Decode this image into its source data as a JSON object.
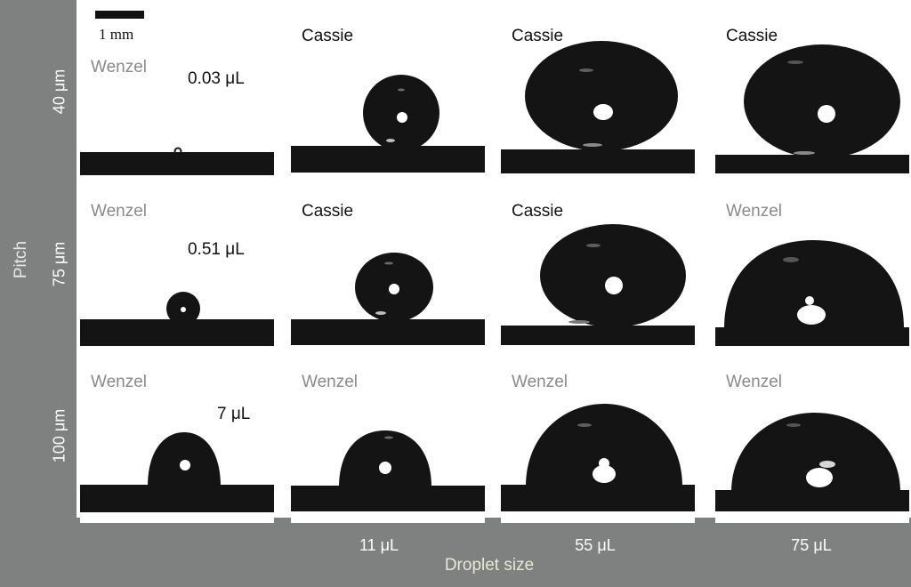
{
  "scale_bar": {
    "label": "1 mm"
  },
  "axes": {
    "y_title": "Pitch",
    "x_title": "Droplet size"
  },
  "rows": [
    {
      "label": "40 μm"
    },
    {
      "label": "75 μm"
    },
    {
      "label": "100 μm"
    }
  ],
  "columns": [
    {
      "label": ""
    },
    {
      "label": "11 μL"
    },
    {
      "label": "55 μL"
    },
    {
      "label": "75 μL"
    }
  ],
  "first_column_volumes": [
    "0.03 μL",
    "0.51 μL",
    "7 μL"
  ],
  "states": [
    [
      "Wenzel",
      "Cassie",
      "Cassie",
      "Cassie"
    ],
    [
      "Wenzel",
      "Cassie",
      "Cassie",
      "Wenzel"
    ],
    [
      "Wenzel",
      "Wenzel",
      "Wenzel",
      "Wenzel"
    ]
  ],
  "colors": {
    "frame": "#7f8080",
    "droplet": "#141414",
    "wenzel_text": "#8a8a8a",
    "cassie_text": "#111111"
  }
}
